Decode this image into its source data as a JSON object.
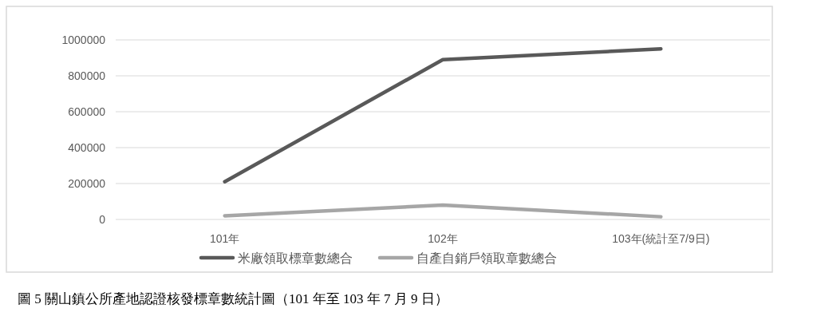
{
  "chart_data": {
    "type": "line",
    "categories": [
      "101年",
      "102年",
      "103年(統計至7/9日)"
    ],
    "series": [
      {
        "name": "米廠領取標章數總合",
        "color": "#595959",
        "values": [
          210000,
          890000,
          950000
        ]
      },
      {
        "name": "自產自銷戶領取章數總合",
        "color": "#a6a6a6",
        "values": [
          20000,
          80000,
          15000
        ]
      }
    ],
    "ylim": [
      0,
      1000000
    ],
    "yticks": [
      0,
      200000,
      400000,
      600000,
      800000,
      1000000
    ],
    "grid": "y",
    "legend": "bottom",
    "annotations": [
      "圖 5 關山鎮公所產地認證核發標章數統計圖（101 年至 103 年 7 月 9 日）"
    ]
  }
}
